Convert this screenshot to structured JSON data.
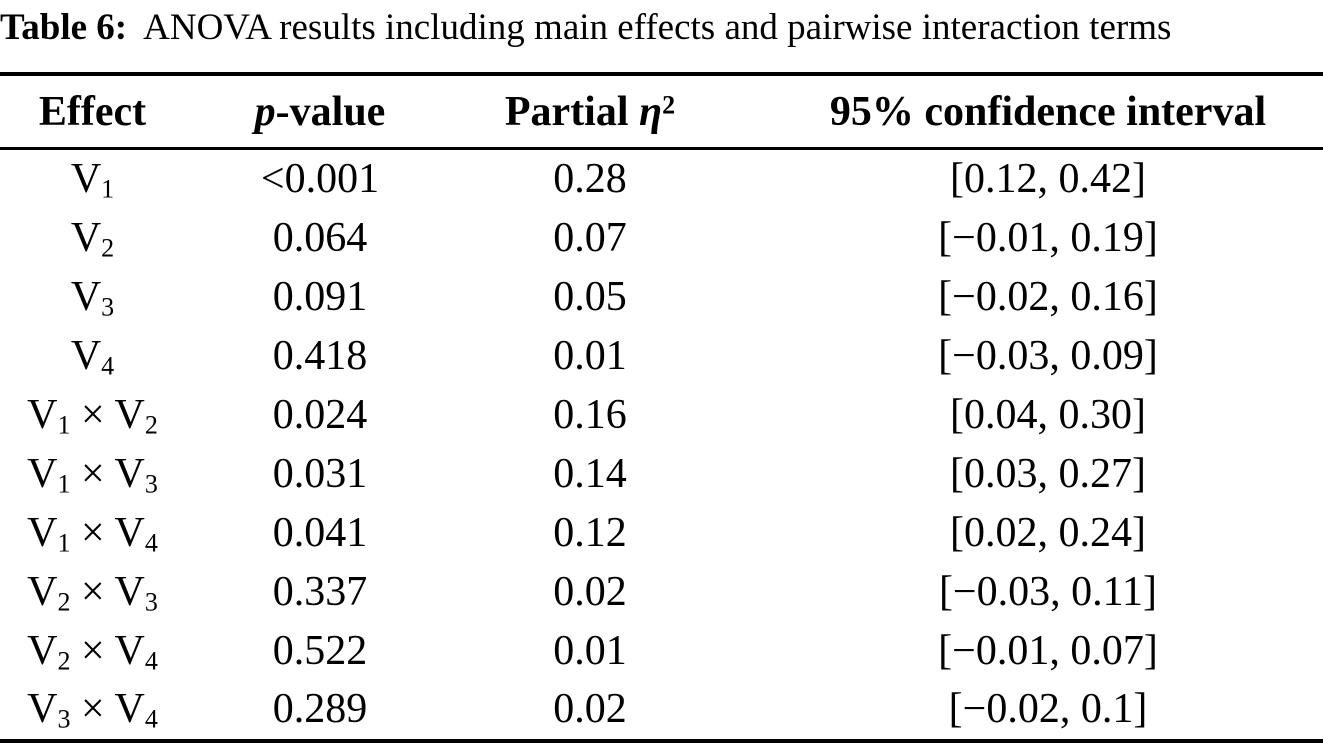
{
  "title": {
    "label": "Table 6:",
    "text": "ANOVA results including main effects and pairwise interaction terms"
  },
  "columns": {
    "effect": "Effect",
    "p_prefix": "p",
    "p_suffix": "-value",
    "partial_prefix": "Partial ",
    "partial_eta": "η",
    "partial_sup": "2",
    "ci": "95% confidence interval"
  },
  "rows": [
    {
      "effect": {
        "v1": "V",
        "s1": "1"
      },
      "p": "<0.001",
      "eta2": "0.28",
      "ci": "[0.12, 0.42]"
    },
    {
      "effect": {
        "v1": "V",
        "s1": "2"
      },
      "p": "0.064",
      "eta2": "0.07",
      "ci": "[−0.01, 0.19]"
    },
    {
      "effect": {
        "v1": "V",
        "s1": "3"
      },
      "p": "0.091",
      "eta2": "0.05",
      "ci": "[−0.02, 0.16]"
    },
    {
      "effect": {
        "v1": "V",
        "s1": "4"
      },
      "p": "0.418",
      "eta2": "0.01",
      "ci": "[−0.03, 0.09]"
    },
    {
      "effect": {
        "v1": "V",
        "s1": "1",
        "op": " × ",
        "v2": "V",
        "s2": "2"
      },
      "p": "0.024",
      "eta2": "0.16",
      "ci": "[0.04, 0.30]"
    },
    {
      "effect": {
        "v1": "V",
        "s1": "1",
        "op": " × ",
        "v2": "V",
        "s2": "3"
      },
      "p": "0.031",
      "eta2": "0.14",
      "ci": "[0.03, 0.27]"
    },
    {
      "effect": {
        "v1": "V",
        "s1": "1",
        "op": " × ",
        "v2": "V",
        "s2": "4"
      },
      "p": "0.041",
      "eta2": "0.12",
      "ci": "[0.02, 0.24]"
    },
    {
      "effect": {
        "v1": "V",
        "s1": "2",
        "op": " × ",
        "v2": "V",
        "s2": "3"
      },
      "p": "0.337",
      "eta2": "0.02",
      "ci": "[−0.03, 0.11]"
    },
    {
      "effect": {
        "v1": "V",
        "s1": "2",
        "op": " × ",
        "v2": "V",
        "s2": "4"
      },
      "p": "0.522",
      "eta2": "0.01",
      "ci": "[−0.01, 0.07]"
    },
    {
      "effect": {
        "v1": "V",
        "s1": "3",
        "op": " × ",
        "v2": "V",
        "s2": "4"
      },
      "p": "0.289",
      "eta2": "0.02",
      "ci": "[−0.02, 0.1]"
    }
  ]
}
